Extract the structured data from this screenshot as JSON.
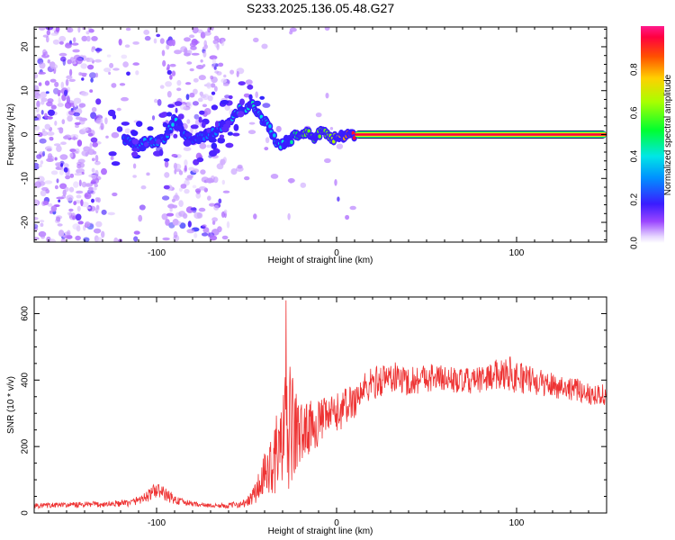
{
  "title": "S233.2025.136.05.48.G27",
  "chart_data": [
    {
      "type": "heatmap",
      "title": "S233.2025.136.05.48.G27",
      "xlabel": "Height of straight line (km)",
      "ylabel": "Frequency (Hz)",
      "xlim": [
        -168,
        150
      ],
      "ylim": [
        -24.5,
        24.5
      ],
      "xticks": [
        -100,
        0,
        100
      ],
      "yticks": [
        -20,
        -10,
        0,
        10,
        20
      ],
      "colorbar": {
        "label": "Normalized spectral amplitude",
        "range": [
          0,
          1
        ],
        "ticks": [
          "0.0",
          "0.2",
          "0.4",
          "0.6",
          "0.8"
        ]
      },
      "ridge": {
        "description": "dominant frequency trace",
        "x": [
          -118,
          -110,
          -105,
          -100,
          -95,
          -90,
          -85,
          -80,
          -75,
          -70,
          -65,
          -60,
          -55,
          -52,
          -50,
          -47,
          -45,
          -42,
          -40,
          -38,
          -35,
          -33,
          -30,
          -27,
          -25,
          -22,
          -20,
          -17,
          -15,
          -12,
          -10,
          -7,
          -5,
          -2,
          0,
          2,
          5,
          8,
          10,
          150
        ],
        "y": [
          -1.0,
          -2.5,
          -1.5,
          -2.0,
          -0.5,
          3.5,
          0.5,
          -1.0,
          -0.5,
          0.0,
          1.5,
          3.0,
          5.5,
          6.0,
          5.5,
          7.0,
          6.0,
          4.0,
          3.0,
          2.0,
          -0.5,
          -2.5,
          -2.0,
          -1.5,
          -1.0,
          0.0,
          0.5,
          0.5,
          0.0,
          -1.0,
          0.0,
          1.0,
          0.0,
          -1.0,
          -0.5,
          0.0,
          -0.5,
          0.0,
          0.0,
          0.0
        ],
        "amplitude": [
          0.25,
          0.3,
          0.35,
          0.3,
          0.3,
          0.4,
          0.3,
          0.25,
          0.25,
          0.3,
          0.3,
          0.35,
          0.4,
          0.45,
          0.4,
          0.45,
          0.4,
          0.4,
          0.35,
          0.35,
          0.35,
          0.4,
          0.4,
          0.4,
          0.45,
          0.5,
          0.55,
          0.6,
          0.6,
          0.55,
          0.6,
          0.6,
          0.6,
          0.65,
          0.7,
          0.75,
          0.8,
          0.9,
          0.95,
          0.95
        ]
      }
    },
    {
      "type": "line",
      "xlabel": "Height of straight line (km)",
      "ylabel": "SNR (10 * v/v)",
      "xlim": [
        -168,
        150
      ],
      "ylim": [
        0,
        650
      ],
      "xticks": [
        -100,
        0,
        100
      ],
      "yticks": [
        0,
        200,
        400,
        600
      ],
      "series": [
        {
          "name": "SNR",
          "color": "#ee3333",
          "envelope_x": [
            -168,
            -150,
            -130,
            -115,
            -105,
            -100,
            -95,
            -90,
            -85,
            -80,
            -70,
            -60,
            -50,
            -45,
            -40,
            -35,
            -30,
            -27,
            -25,
            -22,
            -20,
            -15,
            -10,
            -5,
            0,
            5,
            10,
            15,
            20,
            25,
            30,
            35,
            40,
            50,
            60,
            70,
            80,
            90,
            95,
            100,
            105,
            110,
            120,
            130,
            140,
            150
          ],
          "envelope_mean": [
            22,
            24,
            26,
            30,
            50,
            70,
            55,
            40,
            32,
            28,
            22,
            22,
            30,
            60,
            110,
            160,
            210,
            250,
            260,
            240,
            240,
            260,
            270,
            290,
            300,
            320,
            340,
            370,
            390,
            400,
            410,
            405,
            395,
            410,
            405,
            395,
            400,
            420,
            425,
            410,
            405,
            395,
            385,
            375,
            360,
            355
          ],
          "envelope_spread": [
            8,
            8,
            10,
            10,
            18,
            25,
            20,
            15,
            10,
            8,
            6,
            8,
            12,
            40,
            70,
            100,
            170,
            200,
            180,
            120,
            90,
            80,
            70,
            60,
            60,
            60,
            55,
            55,
            50,
            50,
            50,
            45,
            45,
            45,
            40,
            40,
            40,
            45,
            55,
            55,
            45,
            40,
            40,
            35,
            35,
            35
          ],
          "peak_x": -28,
          "peak_value": 640
        }
      ]
    }
  ]
}
